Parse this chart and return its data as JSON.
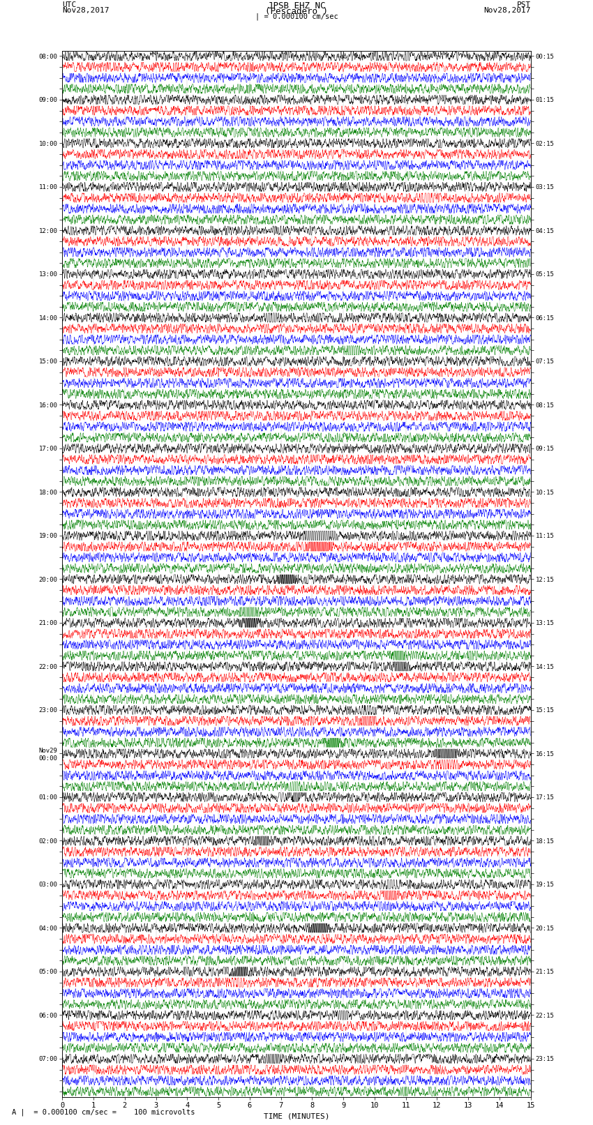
{
  "title_line1": "JPSB EHZ NC",
  "title_line2": "(Pescadero )",
  "title_line3": "| = 0.000100 cm/sec",
  "utc_label": "UTC",
  "utc_date": "Nov28,2017",
  "pst_label": "PST",
  "pst_date": "Nov28,2017",
  "xlabel": "TIME (MINUTES)",
  "footer": "A |  = 0.000100 cm/sec =    100 microvolts",
  "trace_colors": [
    "black",
    "red",
    "blue",
    "green"
  ],
  "num_rows": 96,
  "minutes_per_row": 15,
  "samples_per_minute": 200,
  "background_color": "white",
  "left_times_utc": [
    "08:00",
    "",
    "",
    "",
    "09:00",
    "",
    "",
    "",
    "10:00",
    "",
    "",
    "",
    "11:00",
    "",
    "",
    "",
    "12:00",
    "",
    "",
    "",
    "13:00",
    "",
    "",
    "",
    "14:00",
    "",
    "",
    "",
    "15:00",
    "",
    "",
    "",
    "16:00",
    "",
    "",
    "",
    "17:00",
    "",
    "",
    "",
    "18:00",
    "",
    "",
    "",
    "19:00",
    "",
    "",
    "",
    "20:00",
    "",
    "",
    "",
    "21:00",
    "",
    "",
    "",
    "22:00",
    "",
    "",
    "",
    "23:00",
    "",
    "",
    "",
    "Nov29\n00:00",
    "",
    "",
    "",
    "01:00",
    "",
    "",
    "",
    "02:00",
    "",
    "",
    "",
    "03:00",
    "",
    "",
    "",
    "04:00",
    "",
    "",
    "",
    "05:00",
    "",
    "",
    "",
    "06:00",
    "",
    "",
    "",
    "07:00",
    "",
    "",
    ""
  ],
  "right_times_pst": [
    "00:15",
    "",
    "",
    "",
    "01:15",
    "",
    "",
    "",
    "02:15",
    "",
    "",
    "",
    "03:15",
    "",
    "",
    "",
    "04:15",
    "",
    "",
    "",
    "05:15",
    "",
    "",
    "",
    "06:15",
    "",
    "",
    "",
    "07:15",
    "",
    "",
    "",
    "08:15",
    "",
    "",
    "",
    "09:15",
    "",
    "",
    "",
    "10:15",
    "",
    "",
    "",
    "11:15",
    "",
    "",
    "",
    "12:15",
    "",
    "",
    "",
    "13:15",
    "",
    "",
    "",
    "14:15",
    "",
    "",
    "",
    "15:15",
    "",
    "",
    "",
    "16:15",
    "",
    "",
    "",
    "17:15",
    "",
    "",
    "",
    "18:15",
    "",
    "",
    "",
    "19:15",
    "",
    "",
    "",
    "20:15",
    "",
    "",
    "",
    "21:15",
    "",
    "",
    "",
    "22:15",
    "",
    "",
    "",
    "23:15",
    "",
    "",
    ""
  ],
  "row_amplitude": 0.42,
  "seed": 42,
  "fig_width": 8.5,
  "fig_height": 16.13,
  "dpi": 100
}
